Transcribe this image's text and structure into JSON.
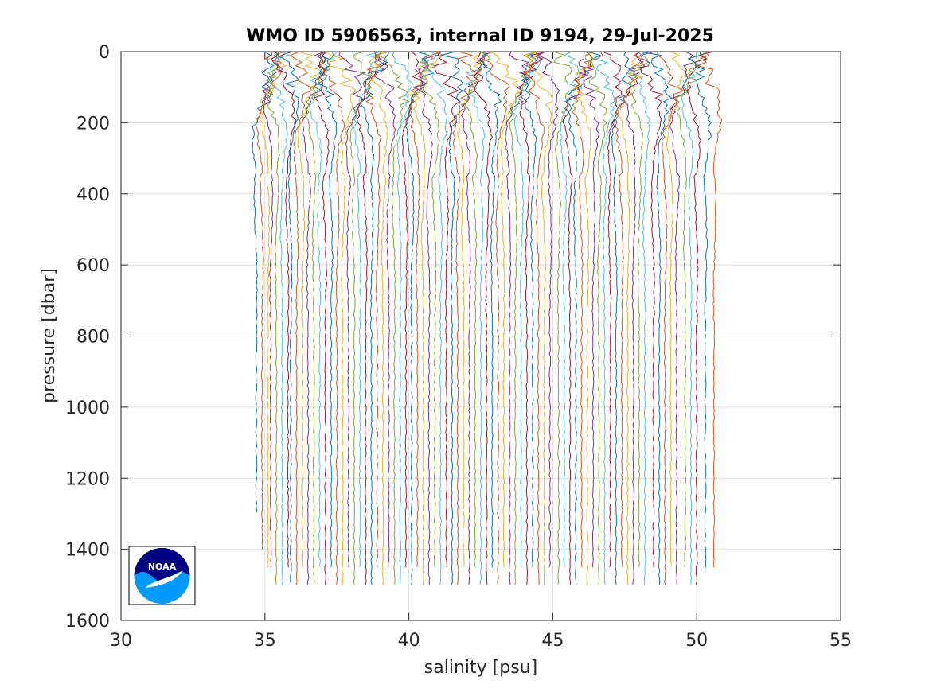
{
  "chart_data": {
    "type": "line",
    "title": "WMO ID 5906563, internal ID 9194, 29-Jul-2025",
    "xlabel": "salinity [psu]",
    "ylabel": "pressure [dbar]",
    "xlim": [
      30,
      55
    ],
    "ylim": [
      0,
      1600
    ],
    "y_reversed": true,
    "grid": true,
    "x_ticks": [
      30,
      35,
      40,
      45,
      50,
      55
    ],
    "y_ticks": [
      0,
      200,
      400,
      600,
      800,
      1000,
      1200,
      1400,
      1600
    ],
    "series_note_offsets_psu": 0.25,
    "profile_count": 79,
    "profile_bottom_salinity": [
      34.7,
      34.9,
      35.1,
      35.2,
      35.4,
      35.6,
      35.8,
      35.9,
      36.1,
      36.3,
      36.5,
      36.7,
      36.9,
      37.1,
      37.3,
      37.5,
      37.7,
      37.9,
      38.1,
      38.3,
      38.5,
      38.7,
      38.9,
      39.1,
      39.3,
      39.5,
      39.7,
      39.9,
      40.1,
      40.3,
      40.5,
      40.7,
      40.9,
      41.1,
      41.3,
      41.5,
      41.7,
      41.9,
      42.1,
      42.3,
      42.5,
      42.7,
      42.9,
      43.1,
      43.3,
      43.5,
      43.7,
      43.9,
      44.1,
      44.3,
      44.5,
      44.7,
      44.9,
      45.2,
      45.4,
      45.6,
      45.8,
      46.0,
      46.2,
      46.4,
      46.6,
      46.8,
      47.0,
      47.2,
      47.4,
      47.6,
      47.8,
      48.0,
      48.2,
      48.5,
      48.7,
      48.9,
      49.1,
      49.3,
      49.6,
      49.8,
      50.0,
      50.3,
      50.6
    ],
    "profile_max_pressure": [
      1300,
      1400,
      1450,
      1450,
      1500,
      1500,
      1450,
      1500,
      1500,
      1450,
      1500,
      1500,
      1450,
      1500,
      1450,
      1500,
      1500,
      1450,
      1500,
      1450,
      1500,
      1500,
      1450,
      1500,
      1450,
      1500,
      1500,
      1450,
      1500,
      1450,
      1500,
      1500,
      1450,
      1500,
      1450,
      1500,
      1500,
      1450,
      1500,
      1450,
      1500,
      1500,
      1450,
      1500,
      1450,
      1500,
      1500,
      1450,
      1500,
      1450,
      1500,
      1500,
      1450,
      1500,
      1450,
      1500,
      1500,
      1450,
      1500,
      1450,
      1500,
      1500,
      1450,
      1500,
      1450,
      1500,
      1500,
      1450,
      1500,
      1450,
      1500,
      1500,
      1450,
      1500,
      1450,
      1500,
      1500,
      1450,
      1450
    ],
    "colors": [
      "#0072bd",
      "#d95319",
      "#edb120",
      "#7e2f8e",
      "#77ac30",
      "#4dbeee",
      "#a2142f"
    ]
  },
  "logo": {
    "name": "NOAA logo",
    "text": "NOAA",
    "colors": {
      "dark": "#000080",
      "light": "#0099ff"
    }
  }
}
